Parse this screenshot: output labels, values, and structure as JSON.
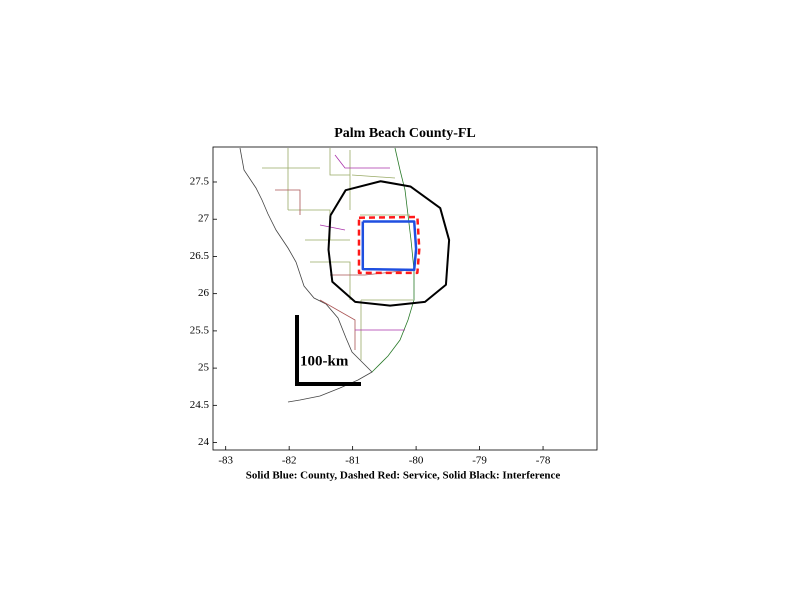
{
  "chart_data": {
    "type": "map",
    "title": "Palm Beach County-FL",
    "xlabel": "Solid Blue: County, Dashed Red: Service, Solid Black: Interference",
    "scale_label": "100-km",
    "xlim": [
      -83.2,
      -77.15
    ],
    "ylim": [
      23.9,
      27.97
    ],
    "xticks": [
      -83,
      -82,
      -81,
      -80,
      -79,
      -78
    ],
    "yticks": [
      24,
      24.5,
      25,
      25.5,
      26,
      26.5,
      27,
      27.5
    ],
    "series": [
      {
        "color": "#000000",
        "dash": "none",
        "width": 2,
        "x": [
          -81.35,
          -81.11,
          -80.56,
          -80.09,
          -79.62,
          -79.48,
          -79.53,
          -79.86,
          -80.41,
          -80.96,
          -81.32,
          -81.38,
          -81.35
        ],
        "y": [
          27.05,
          27.39,
          27.51,
          27.44,
          27.15,
          26.72,
          26.12,
          25.89,
          25.84,
          25.89,
          26.16,
          26.59,
          27.05
        ]
      },
      {
        "color": "#ff1a1a",
        "dash": "6 4",
        "width": 2.5,
        "x": [
          -80.9,
          -79.98,
          -79.95,
          -79.98,
          -80.9,
          -80.9
        ],
        "y": [
          27.02,
          27.03,
          26.6,
          26.28,
          26.28,
          27.02
        ]
      },
      {
        "color": "#1f4fe0",
        "dash": "none",
        "width": 2.5,
        "x": [
          -80.84,
          -80.03,
          -80.0,
          -80.03,
          -80.84,
          -80.84
        ],
        "y": [
          26.97,
          26.97,
          26.6,
          26.32,
          26.33,
          26.97
        ]
      }
    ]
  }
}
